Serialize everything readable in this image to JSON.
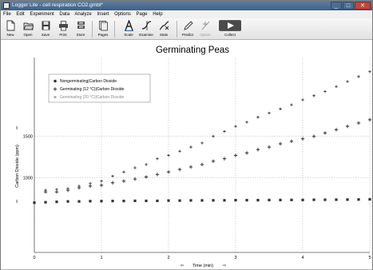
{
  "window": {
    "title": "Logger Lite - cell respiration CO2.gmbl*",
    "minimize": "_",
    "maximize": "□",
    "close": "✕"
  },
  "menu": [
    "File",
    "Edit",
    "Experiment",
    "Data",
    "Analyze",
    "Insert",
    "Options",
    "Page",
    "Help"
  ],
  "toolbar": [
    {
      "id": "new",
      "label": "New",
      "icon": "new-file-icon"
    },
    {
      "id": "open",
      "label": "Open",
      "icon": "folder-icon"
    },
    {
      "id": "save",
      "label": "Save",
      "icon": "floppy-icon"
    },
    {
      "id": "print",
      "label": "Print",
      "icon": "printer-icon"
    },
    {
      "id": "store",
      "label": "Store",
      "icon": "store-icon"
    },
    {
      "id": "pages",
      "label": "Pages",
      "icon": "pages-icon"
    },
    {
      "id": "scale",
      "label": "Scale",
      "icon": "autoscale-icon"
    },
    {
      "id": "examine",
      "label": "Examine",
      "icon": "examine-icon"
    },
    {
      "id": "stats",
      "label": "Stats",
      "icon": "stats-icon"
    },
    {
      "id": "predict",
      "label": "Predict",
      "icon": "pencil-icon"
    },
    {
      "id": "option",
      "label": "Option",
      "icon": "option-icon",
      "disabled": true
    },
    {
      "id": "collect",
      "label": "Collect",
      "icon": "play-icon"
    }
  ],
  "colors": {
    "marker": "#333333",
    "grid": "#b0b0b0",
    "legend_disabled": "#8a8a8a",
    "collect_green": "#4a8f3a"
  },
  "chart_data": {
    "type": "scatter",
    "title": "Germinating Peas",
    "xlabel": "Time (min)",
    "ylabel": "Carbon Dioxide (ppm)",
    "xlim": [
      0,
      5
    ],
    "ylim": [
      100,
      2450
    ],
    "xticks": [
      0,
      1,
      2,
      3,
      4,
      5
    ],
    "yticks": [
      1000,
      1500
    ],
    "grid": true,
    "legend_position": "top-left",
    "series": [
      {
        "name": "Nongerminating|Carbon Dioxide",
        "marker": "square",
        "x": [
          0,
          0.167,
          0.333,
          0.5,
          0.667,
          0.833,
          1,
          1.167,
          1.333,
          1.5,
          1.667,
          1.833,
          2,
          2.167,
          2.333,
          2.5,
          2.667,
          2.833,
          3,
          3.167,
          3.333,
          3.5,
          3.667,
          3.833,
          4,
          4.167,
          4.333,
          4.5,
          4.667,
          4.833,
          5
        ],
        "y": [
          700,
          705,
          710,
          715,
          715,
          718,
          718,
          720,
          720,
          722,
          722,
          722,
          725,
          725,
          727,
          727,
          728,
          728,
          730,
          730,
          730,
          732,
          732,
          733,
          733,
          735,
          735,
          736,
          737,
          738,
          740
        ]
      },
      {
        "name": "Germinating (12 °C)|Carbon Dioxide",
        "marker": "plus",
        "x": [
          0.167,
          0.333,
          0.5,
          0.667,
          0.833,
          1,
          1.167,
          1.333,
          1.5,
          1.667,
          1.833,
          2,
          2.167,
          2.333,
          2.5,
          2.667,
          2.833,
          3,
          3.167,
          3.333,
          3.5,
          3.667,
          3.833,
          4,
          4.167,
          4.333,
          4.5,
          4.667,
          4.833,
          5
        ],
        "y": [
          830,
          830,
          850,
          880,
          900,
          910,
          940,
          960,
          985,
          1010,
          1040,
          1070,
          1100,
          1130,
          1160,
          1200,
          1230,
          1270,
          1300,
          1340,
          1370,
          1410,
          1440,
          1470,
          1500,
          1540,
          1580,
          1620,
          1660,
          1700
        ]
      },
      {
        "name": "Germinating (20 °C)|Carbon Dioxide",
        "marker": "plus-small",
        "disabled": true,
        "x": [
          0.167,
          0.333,
          0.5,
          0.667,
          0.833,
          1,
          1.167,
          1.333,
          1.5,
          1.667,
          1.833,
          2,
          2.167,
          2.333,
          2.5,
          2.667,
          2.833,
          3,
          3.167,
          3.333,
          3.5,
          3.667,
          3.833,
          4,
          4.167,
          4.333,
          4.5,
          4.667,
          4.833,
          5
        ],
        "y": [
          850,
          860,
          870,
          900,
          930,
          960,
          1020,
          1070,
          1120,
          1160,
          1230,
          1270,
          1320,
          1370,
          1420,
          1500,
          1560,
          1620,
          1670,
          1730,
          1780,
          1830,
          1880,
          1940,
          1990,
          2040,
          2100,
          2160,
          2220,
          2280
        ]
      }
    ]
  }
}
